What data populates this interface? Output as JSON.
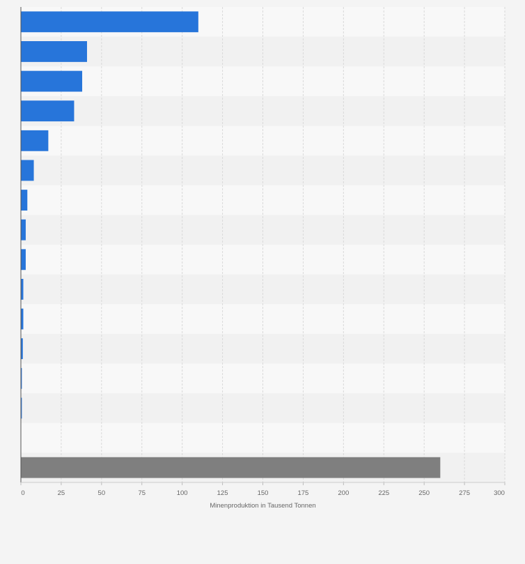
{
  "chart_data": {
    "type": "bar",
    "orientation": "horizontal",
    "title": "",
    "xlabel": "Minenproduktion in Tausend Tonnen",
    "ylabel": "",
    "xlim": [
      0,
      300
    ],
    "x_ticks": [
      0,
      25,
      50,
      75,
      100,
      125,
      150,
      175,
      200,
      225,
      250,
      275,
      300
    ],
    "grid": true,
    "categories": [
      "",
      "",
      "",
      "",
      "",
      "",
      "",
      "",
      "",
      "",
      "",
      "",
      "",
      "",
      "",
      ""
    ],
    "values": [
      110,
      41,
      38,
      33,
      17,
      8,
      4,
      3,
      3,
      1.5,
      1.5,
      1.2,
      0.6,
      0.6,
      0,
      260
    ],
    "bar_colors": [
      "#2775da",
      "#2775da",
      "#2775da",
      "#2775da",
      "#2775da",
      "#2775da",
      "#2775da",
      "#2775da",
      "#2775da",
      "#2775da",
      "#2775da",
      "#2775da",
      "#2775da",
      "#2775da",
      "#2775da",
      "#7f7f7f"
    ],
    "colors": {
      "primary": "#2775da",
      "total": "#7f7f7f",
      "band_light": "#f8f8f8",
      "band_dark": "#f1f1f1",
      "grid": "#d9d9d9",
      "axis": "#555555"
    }
  }
}
